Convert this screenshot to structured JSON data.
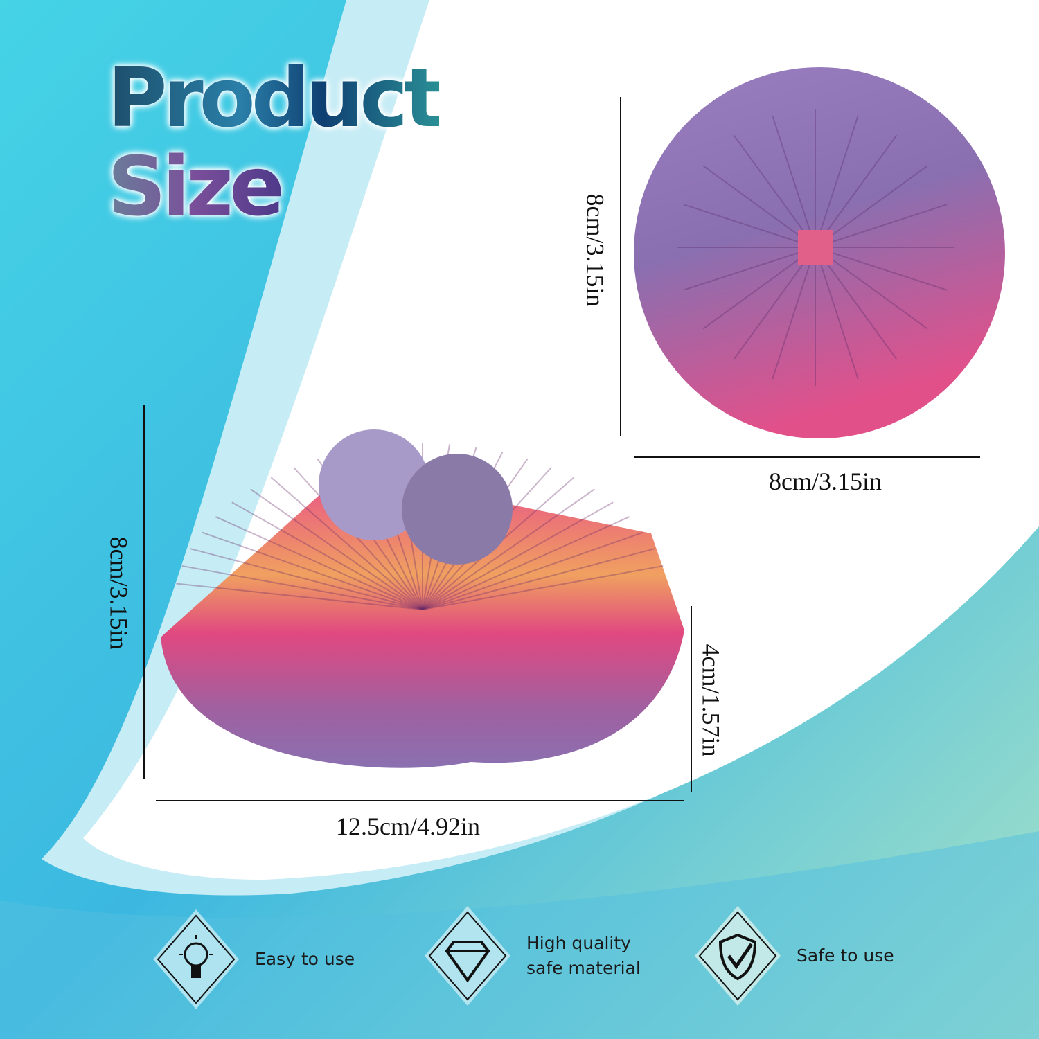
{
  "title": {
    "line1": "Product",
    "line2": "Size"
  },
  "dimensions": {
    "ball_height": "8cm/3.15in",
    "ball_width": "8cm/3.15in",
    "open_height": "8cm/3.15in",
    "open_half_height": "4cm/1.57in",
    "open_width": "12.5cm/4.92in"
  },
  "features": [
    {
      "icon": "lightbulb-icon",
      "label_lines": [
        "Easy to use"
      ]
    },
    {
      "icon": "diamond-icon",
      "label_lines": [
        "High quality",
        "safe material"
      ]
    },
    {
      "icon": "shield-check-icon",
      "label_lines": [
        "Safe to use"
      ]
    }
  ],
  "colors": {
    "accent_cyan": "#3cc8e6",
    "accent_teal": "#7fd6cf",
    "product_pink": "#e0467e",
    "product_purple": "#8c6fb0"
  }
}
